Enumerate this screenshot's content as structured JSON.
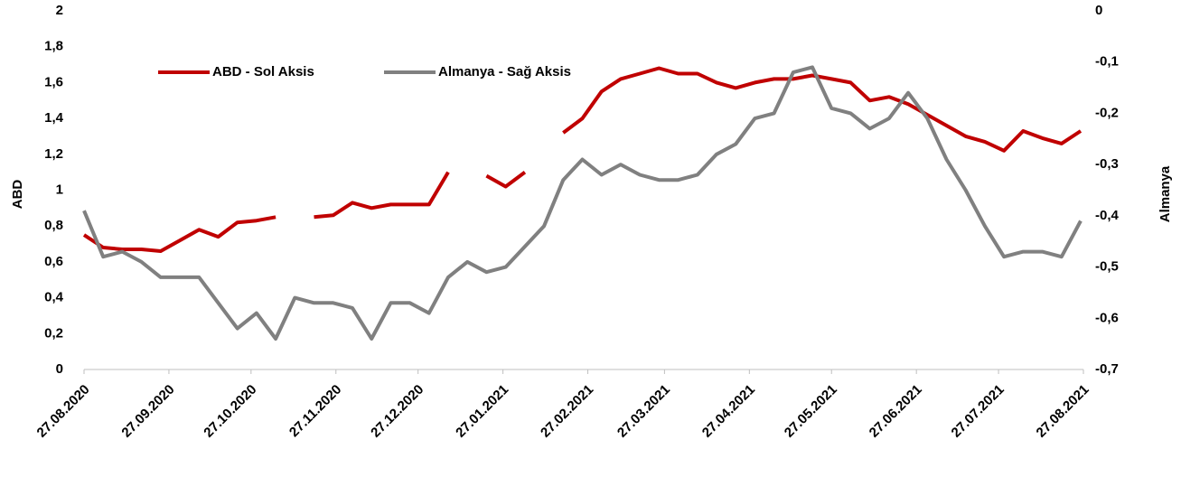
{
  "chart_data": {
    "type": "line",
    "x_axis_dates": true,
    "xlim": [
      "27.08.2020",
      "27.08.2021"
    ],
    "xticks": [
      "27.08.2020",
      "27.09.2020",
      "27.10.2020",
      "27.11.2020",
      "27.12.2020",
      "27.01.2021",
      "27.02.2021",
      "27.03.2021",
      "27.04.2021",
      "27.05.2021",
      "27.06.2021",
      "27.07.2021",
      "27.08.2021"
    ],
    "x": [
      "27.08.2020",
      "03.09.2020",
      "10.09.2020",
      "17.09.2020",
      "24.09.2020",
      "01.10.2020",
      "08.10.2020",
      "15.10.2020",
      "22.10.2020",
      "29.10.2020",
      "05.11.2020",
      "12.11.2020",
      "19.11.2020",
      "26.11.2020",
      "03.12.2020",
      "10.12.2020",
      "17.12.2020",
      "24.12.2020",
      "31.12.2020",
      "07.01.2021",
      "14.01.2021",
      "21.01.2021",
      "28.01.2021",
      "04.02.2021",
      "11.02.2021",
      "18.02.2021",
      "25.02.2021",
      "04.03.2021",
      "11.03.2021",
      "18.03.2021",
      "25.03.2021",
      "01.04.2021",
      "08.04.2021",
      "15.04.2021",
      "22.04.2021",
      "29.04.2021",
      "06.05.2021",
      "13.05.2021",
      "20.05.2021",
      "27.05.2021",
      "03.06.2021",
      "10.06.2021",
      "17.06.2021",
      "24.06.2021",
      "01.07.2021",
      "08.07.2021",
      "15.07.2021",
      "22.07.2021",
      "29.07.2021",
      "05.08.2021",
      "12.08.2021",
      "19.08.2021",
      "26.08.2021"
    ],
    "series": [
      {
        "name": "ABD - Sol Aksis",
        "color": "#c00000",
        "axis": "y",
        "values": [
          0.75,
          0.68,
          0.67,
          0.67,
          0.66,
          0.72,
          0.78,
          0.74,
          0.82,
          0.83,
          0.85,
          null,
          0.85,
          0.86,
          0.93,
          0.9,
          0.92,
          0.92,
          0.92,
          1.1,
          null,
          1.08,
          1.02,
          1.1,
          null,
          1.32,
          1.4,
          1.55,
          1.62,
          1.65,
          1.68,
          1.65,
          1.65,
          1.6,
          1.57,
          1.6,
          1.62,
          1.62,
          1.64,
          1.62,
          1.6,
          1.5,
          1.52,
          1.48,
          1.42,
          1.36,
          1.3,
          1.27,
          1.22,
          1.33,
          1.29,
          1.26,
          1.33
        ]
      },
      {
        "name": "Almanya - Sağ Aksis",
        "color": "#808080",
        "axis": "y2",
        "values": [
          -0.39,
          -0.48,
          -0.47,
          -0.49,
          -0.52,
          -0.52,
          -0.52,
          -0.57,
          -0.62,
          -0.59,
          -0.64,
          -0.56,
          -0.57,
          -0.57,
          -0.58,
          -0.64,
          -0.57,
          -0.57,
          -0.59,
          -0.52,
          -0.49,
          -0.51,
          -0.5,
          -0.46,
          -0.42,
          -0.33,
          -0.29,
          -0.32,
          -0.3,
          -0.32,
          -0.33,
          -0.33,
          -0.32,
          -0.28,
          -0.26,
          -0.21,
          -0.2,
          -0.12,
          -0.11,
          -0.19,
          -0.2,
          -0.23,
          -0.21,
          -0.16,
          -0.21,
          -0.29,
          -0.35,
          -0.42,
          -0.48,
          -0.47,
          -0.47,
          -0.48,
          -0.41
        ]
      }
    ],
    "ylabel": "ABD",
    "y2label": "Almanya",
    "ylim": [
      0,
      2
    ],
    "yticks": [
      0,
      {
        "value": 0.2,
        "label": "0,2"
      },
      {
        "value": 0.4,
        "label": "0,4"
      },
      {
        "value": 0.6,
        "label": "0,6"
      },
      {
        "value": 0.8,
        "label": "0,8"
      },
      1,
      {
        "value": 1.2,
        "label": "1,2"
      },
      {
        "value": 1.4,
        "label": "1,4"
      },
      {
        "value": 1.6,
        "label": "1,6"
      },
      {
        "value": 1.8,
        "label": "1,8"
      },
      2
    ],
    "y2lim": [
      -0.7,
      0
    ],
    "y2ticks": [
      {
        "value": -0.7,
        "label": "-0,7"
      },
      {
        "value": -0.6,
        "label": "-0,6"
      },
      {
        "value": -0.5,
        "label": "-0,5"
      },
      {
        "value": -0.4,
        "label": "-0,4"
      },
      {
        "value": -0.3,
        "label": "-0,3"
      },
      {
        "value": -0.2,
        "label": "-0,2"
      },
      {
        "value": -0.1,
        "label": "-0,1"
      },
      0
    ],
    "grid": false,
    "legend": "top-left"
  }
}
